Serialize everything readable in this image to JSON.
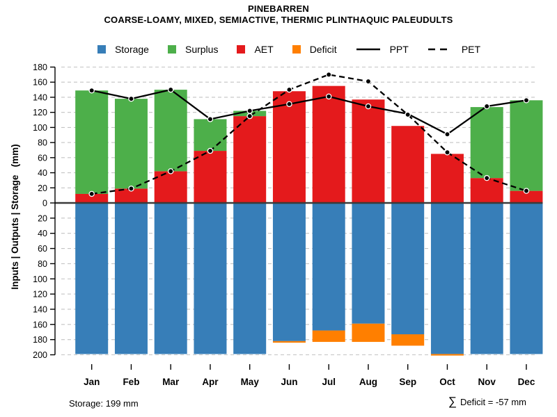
{
  "title": "PINEBARREN",
  "subtitle": "COARSE-LOAMY, MIXED, SEMIACTIVE, THERMIC PLINTHAQUIC PALEUDULTS",
  "legend": [
    {
      "label": "Storage",
      "swatch": "square",
      "color": "#377EB8"
    },
    {
      "label": "Surplus",
      "swatch": "square",
      "color": "#4DAF4A"
    },
    {
      "label": "AET",
      "swatch": "square",
      "color": "#E41A1C"
    },
    {
      "label": "Deficit",
      "swatch": "square",
      "color": "#FF7F00"
    },
    {
      "label": "PPT",
      "swatch": "line-solid",
      "color": "#000000"
    },
    {
      "label": "PET",
      "swatch": "line-dashed",
      "color": "#000000"
    }
  ],
  "footer": {
    "storage_note": "Storage: 199 mm",
    "sigma": "∑",
    "deficit_note": "Deficit = -57 mm"
  },
  "chart_data": {
    "type": "bar",
    "subtype": "mirrored-stacked-bars-with-lines",
    "title": "PINEBARREN",
    "subtitle": "COARSE-LOAMY, MIXED, SEMIACTIVE, THERMIC PLINTHAQUIC PALEUDULTS",
    "ylabel": "Inputs | Outputs | Storage   (mm)",
    "xlabel": "",
    "grid": "dashed-gray",
    "legend_position": "top-center",
    "upper_axis_range": [
      0,
      180
    ],
    "lower_axis_range": [
      0,
      200
    ],
    "upper_ticks": [
      180,
      160,
      140,
      120,
      100,
      80,
      60,
      40,
      20,
      0
    ],
    "lower_ticks": [
      20,
      40,
      60,
      80,
      100,
      120,
      140,
      160,
      180,
      200
    ],
    "categories": [
      "Jan",
      "Feb",
      "Mar",
      "Apr",
      "May",
      "Jun",
      "Jul",
      "Aug",
      "Sep",
      "Oct",
      "Nov",
      "Dec"
    ],
    "series": [
      {
        "name": "AET",
        "role": "bar-up",
        "color": "#E41A1C",
        "values": [
          12,
          19,
          42,
          69,
          115,
          148,
          155,
          137,
          102,
          65,
          33,
          16
        ]
      },
      {
        "name": "Surplus",
        "role": "bar-up-stacked",
        "color": "#4DAF4A",
        "values": [
          137,
          119,
          108,
          42,
          7,
          0,
          0,
          0,
          0,
          0,
          94,
          120
        ]
      },
      {
        "name": "Storage",
        "role": "bar-down",
        "color": "#377EB8",
        "values": [
          199,
          199,
          199,
          199,
          199,
          182,
          168,
          159,
          173,
          199,
          199,
          199
        ]
      },
      {
        "name": "Deficit",
        "role": "bar-down-stacked",
        "color": "#FF7F00",
        "values": [
          0,
          0,
          0,
          0,
          0,
          2,
          15,
          24,
          15,
          2,
          0,
          0
        ]
      },
      {
        "name": "PPT",
        "role": "line-solid",
        "color": "#000000",
        "values": [
          149,
          138,
          150,
          111,
          122,
          131,
          141,
          128,
          118,
          91,
          128,
          136
        ]
      },
      {
        "name": "PET",
        "role": "line-dashed",
        "color": "#000000",
        "values": [
          12,
          19,
          42,
          69,
          115,
          150,
          170,
          161,
          117,
          67,
          33,
          16
        ]
      }
    ],
    "annotations": [
      "Storage: 199 mm",
      "∑ Deficit = -57 mm"
    ],
    "colors": {
      "gridline": "#C3C3C3",
      "zero_line": "#3A3A3A",
      "axis": "#000000",
      "marker_fill": "#000000",
      "marker_ring": "#FFFFFF"
    }
  }
}
